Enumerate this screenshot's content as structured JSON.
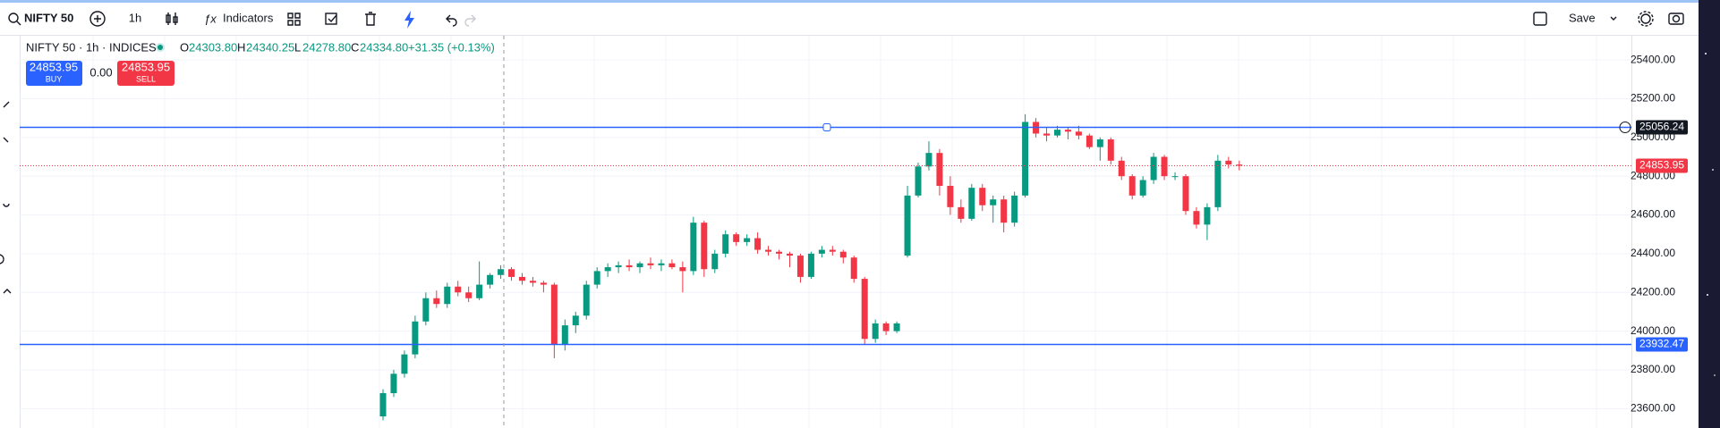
{
  "toolbar": {
    "symbol": "NIFTY 50",
    "interval": "1h",
    "indicators": "Indicators",
    "save": "Save"
  },
  "legend": {
    "title": "NIFTY 50 · 1h · INDICES",
    "o_key": "O",
    "o": "24303.80",
    "h_key": "H",
    "h": "24340.25",
    "l_key": "L",
    "l": "24278.80",
    "c_key": "C",
    "c": "24334.80",
    "change": "+31.35 (+0.13%)",
    "buy_price": "24853.95",
    "buy": "BUY",
    "spread": "0.00",
    "sell_price": "24853.95",
    "sell": "SELL"
  },
  "chart_data": {
    "type": "candlestick",
    "up_color": "#089981",
    "down_color": "#f23645",
    "grid": true,
    "ylim": [
      23500,
      25525
    ],
    "yticks": [
      {
        "value": 23600,
        "label": "23600.00"
      },
      {
        "value": 23800,
        "label": "23800.00"
      },
      {
        "value": 24000,
        "label": "24000.00"
      },
      {
        "value": 24200,
        "label": "24200.00"
      },
      {
        "value": 24400,
        "label": "24400.00"
      },
      {
        "value": 24600,
        "label": "24600.00"
      },
      {
        "value": 24800,
        "label": "24800.00"
      },
      {
        "value": 25000,
        "label": "25000.00"
      },
      {
        "value": 25200,
        "label": "25200.00"
      },
      {
        "value": 25400,
        "label": "25400.00"
      }
    ],
    "lines": [
      {
        "value": 25056.24,
        "color": "#2962ff",
        "style": "solid",
        "label_bg": "#131722"
      },
      {
        "value": 24853.95,
        "color": "#f23645",
        "style": "dotted",
        "label_bg": "#f23645"
      },
      {
        "value": 23932.47,
        "color": "#2962ff",
        "style": "solid",
        "label_bg": "#2962ff"
      }
    ],
    "ohlc": [
      [
        23560,
        23700,
        23540,
        23680
      ],
      [
        23680,
        23800,
        23660,
        23780
      ],
      [
        23780,
        23900,
        23760,
        23880
      ],
      [
        23880,
        24080,
        23860,
        24050
      ],
      [
        24050,
        24200,
        24030,
        24170
      ],
      [
        24170,
        24210,
        24120,
        24140
      ],
      [
        24140,
        24250,
        24120,
        24230
      ],
      [
        24230,
        24260,
        24180,
        24200
      ],
      [
        24200,
        24230,
        24150,
        24170
      ],
      [
        24170,
        24360,
        24160,
        24240
      ],
      [
        24240,
        24300,
        24220,
        24290
      ],
      [
        24290,
        24340,
        24270,
        24320
      ],
      [
        24320,
        24330,
        24260,
        24280
      ],
      [
        24280,
        24300,
        24240,
        24260
      ],
      [
        24260,
        24280,
        24230,
        24250
      ],
      [
        24250,
        24260,
        24200,
        24240
      ],
      [
        24240,
        24250,
        23860,
        23930
      ],
      [
        23930,
        24060,
        23900,
        24030
      ],
      [
        24030,
        24100,
        23990,
        24080
      ],
      [
        24080,
        24260,
        24060,
        24240
      ],
      [
        24240,
        24330,
        24220,
        24310
      ],
      [
        24310,
        24350,
        24280,
        24330
      ],
      [
        24330,
        24360,
        24300,
        24340
      ],
      [
        24340,
        24370,
        24310,
        24330
      ],
      [
        24330,
        24360,
        24300,
        24350
      ],
      [
        24350,
        24380,
        24320,
        24340
      ],
      [
        24340,
        24370,
        24310,
        24350
      ],
      [
        24350,
        24370,
        24320,
        24330
      ],
      [
        24330,
        24360,
        24200,
        24310
      ],
      [
        24310,
        24590,
        24290,
        24560
      ],
      [
        24560,
        24570,
        24280,
        24320
      ],
      [
        24320,
        24420,
        24300,
        24400
      ],
      [
        24400,
        24520,
        24380,
        24500
      ],
      [
        24500,
        24510,
        24440,
        24460
      ],
      [
        24460,
        24500,
        24440,
        24480
      ],
      [
        24480,
        24510,
        24400,
        24420
      ],
      [
        24420,
        24440,
        24390,
        24410
      ],
      [
        24410,
        24420,
        24370,
        24400
      ],
      [
        24400,
        24410,
        24330,
        24390
      ],
      [
        24390,
        24400,
        24250,
        24280
      ],
      [
        24280,
        24410,
        24270,
        24400
      ],
      [
        24400,
        24440,
        24380,
        24420
      ],
      [
        24420,
        24440,
        24390,
        24410
      ],
      [
        24410,
        24420,
        24350,
        24380
      ],
      [
        24380,
        24390,
        24250,
        24270
      ],
      [
        24270,
        24280,
        23930,
        23960
      ],
      [
        23960,
        24060,
        23940,
        24040
      ],
      [
        24040,
        24050,
        23980,
        24000
      ],
      [
        24000,
        24050,
        23990,
        24040
      ],
      [
        24390,
        24750,
        24380,
        24700
      ],
      [
        24700,
        24870,
        24690,
        24850
      ],
      [
        24850,
        24980,
        24830,
        24920
      ],
      [
        24920,
        24940,
        24700,
        24750
      ],
      [
        24750,
        24800,
        24600,
        24640
      ],
      [
        24640,
        24680,
        24560,
        24580
      ],
      [
        24580,
        24760,
        24570,
        24740
      ],
      [
        24740,
        24760,
        24620,
        24650
      ],
      [
        24650,
        24700,
        24560,
        24680
      ],
      [
        24680,
        24700,
        24510,
        24560
      ],
      [
        24560,
        24720,
        24540,
        24700
      ],
      [
        24700,
        25120,
        24690,
        25080
      ],
      [
        25080,
        25100,
        25000,
        25020
      ],
      [
        25020,
        25050,
        24980,
        25010
      ],
      [
        25010,
        25060,
        25000,
        25040
      ],
      [
        25040,
        25050,
        24990,
        25030
      ],
      [
        25030,
        25060,
        24990,
        25010
      ],
      [
        25010,
        25020,
        24940,
        24950
      ],
      [
        24950,
        25000,
        24880,
        24990
      ],
      [
        24990,
        25000,
        24860,
        24880
      ],
      [
        24880,
        24900,
        24780,
        24800
      ],
      [
        24800,
        24810,
        24680,
        24700
      ],
      [
        24700,
        24800,
        24690,
        24780
      ],
      [
        24780,
        24920,
        24760,
        24900
      ],
      [
        24900,
        24910,
        24780,
        24800
      ],
      [
        24800,
        24820,
        24780,
        24800
      ],
      [
        24800,
        24810,
        24600,
        24620
      ],
      [
        24620,
        24640,
        24530,
        24550
      ],
      [
        24550,
        24660,
        24470,
        24640
      ],
      [
        24640,
        24910,
        24620,
        24880
      ],
      [
        24880,
        24900,
        24840,
        24860
      ],
      [
        24860,
        24880,
        24830,
        24854
      ]
    ]
  }
}
